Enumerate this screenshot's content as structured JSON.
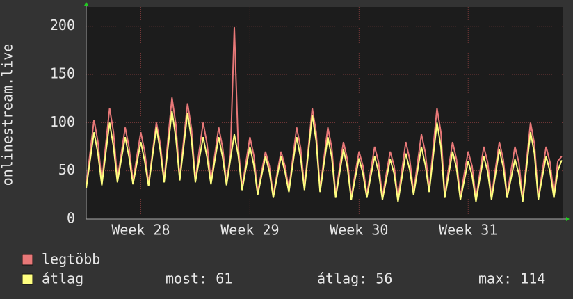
{
  "chart_data": {
    "type": "line",
    "y_label": "onlinestream.live",
    "x": [
      0,
      0.25,
      0.5,
      0.75,
      1,
      1.25,
      1.5,
      1.75,
      2,
      2.25,
      2.5,
      2.75,
      3,
      3.25,
      3.5,
      3.75,
      4,
      4.25,
      4.5,
      4.75,
      5,
      5.25,
      5.5,
      5.75,
      6,
      6.25,
      6.5,
      6.75,
      7,
      7.25,
      7.5,
      7.75,
      8,
      8.25,
      8.5,
      8.75,
      9,
      9.25,
      9.5,
      9.75,
      10,
      10.25,
      10.5,
      10.75,
      11,
      11.25,
      11.5,
      11.75,
      12,
      12.25,
      12.5,
      12.75,
      13,
      13.25,
      13.5,
      13.75,
      14,
      14.25,
      14.5,
      14.75,
      15,
      15.25,
      15.5,
      15.75,
      16,
      16.25,
      16.5,
      16.75,
      17,
      17.25,
      17.5,
      17.75,
      18,
      18.25,
      18.5,
      18.75,
      19,
      19.25,
      19.5,
      19.75,
      20,
      20.25,
      20.5,
      20.75,
      21,
      21.25,
      21.5,
      21.75,
      22,
      22.25,
      22.5,
      22.75,
      23,
      23.25,
      23.5,
      23.75,
      24,
      24.25,
      24.5,
      24.75,
      25,
      25.25,
      25.5,
      25.75,
      26,
      26.25,
      26.5,
      26.75,
      27,
      27.25,
      27.5,
      27.75,
      28,
      28.25,
      28.5,
      28.75,
      29,
      29.25,
      29.5,
      29.75,
      30,
      30.25,
      30.5
    ],
    "series": [
      {
        "name": "legtöbb",
        "color": "#e87878",
        "values": [
          35,
          69,
          103,
          80,
          38,
          77,
          115,
          90,
          41,
          68,
          95,
          74,
          39,
          65,
          90,
          70,
          37,
          69,
          100,
          78,
          41,
          84,
          126,
          98,
          43,
          82,
          120,
          94,
          41,
          71,
          100,
          78,
          39,
          67,
          95,
          74,
          38,
          67,
          199,
          75,
          33,
          59,
          85,
          66,
          28,
          49,
          70,
          55,
          25,
          48,
          70,
          55,
          31,
          63,
          95,
          74,
          33,
          74,
          115,
          90,
          31,
          63,
          95,
          74,
          25,
          53,
          80,
          62,
          23,
          47,
          70,
          55,
          25,
          50,
          75,
          59,
          23,
          47,
          70,
          55,
          21,
          51,
          80,
          62,
          28,
          58,
          88,
          69,
          31,
          73,
          115,
          90,
          25,
          53,
          80,
          62,
          23,
          47,
          70,
          55,
          21,
          48,
          75,
          59,
          23,
          52,
          80,
          62,
          25,
          50,
          75,
          59,
          21,
          61,
          100,
          78,
          23,
          49,
          75,
          59,
          25,
          60,
          65
        ]
      },
      {
        "name": "átlag",
        "color": "#ffff80",
        "values": [
          32,
          61,
          90,
          68,
          35,
          68,
          100,
          75,
          38,
          62,
          85,
          64,
          36,
          58,
          80,
          60,
          34,
          65,
          95,
          71,
          38,
          75,
          112,
          84,
          40,
          75,
          110,
          83,
          38,
          62,
          85,
          64,
          36,
          61,
          85,
          64,
          35,
          62,
          88,
          66,
          30,
          53,
          75,
          56,
          25,
          45,
          65,
          49,
          22,
          44,
          65,
          49,
          28,
          57,
          85,
          64,
          30,
          69,
          108,
          81,
          28,
          57,
          85,
          64,
          22,
          47,
          72,
          54,
          20,
          42,
          63,
          47,
          22,
          44,
          65,
          49,
          20,
          41,
          62,
          47,
          18,
          43,
          68,
          51,
          25,
          50,
          75,
          56,
          28,
          64,
          100,
          75,
          22,
          46,
          70,
          53,
          20,
          40,
          60,
          45,
          18,
          42,
          65,
          49,
          20,
          46,
          72,
          54,
          22,
          42,
          62,
          47,
          18,
          54,
          90,
          68,
          20,
          43,
          65,
          49,
          22,
          50,
          61
        ]
      }
    ],
    "xlim": [
      0,
      30.6
    ],
    "xticks": [
      {
        "value": 3.5,
        "label": "Week 28"
      },
      {
        "value": 10.5,
        "label": "Week 29"
      },
      {
        "value": 17.5,
        "label": "Week 30"
      },
      {
        "value": 24.5,
        "label": "Week 31"
      }
    ],
    "ylim": [
      0,
      220
    ],
    "yticks": [
      0,
      50,
      100,
      150,
      200
    ],
    "grid": true,
    "legend_stats": [
      "most: 61",
      "átlag: 56",
      "max: 114"
    ]
  }
}
